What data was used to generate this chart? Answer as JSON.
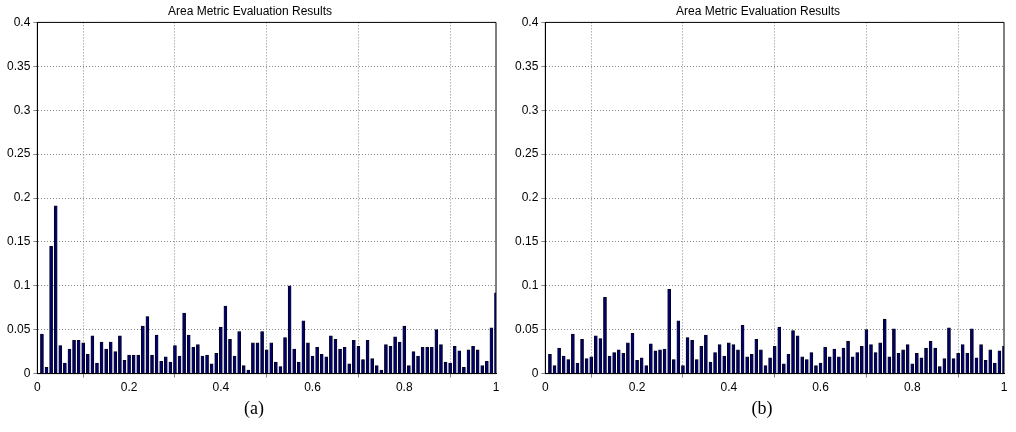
{
  "chart_data": [
    {
      "type": "bar",
      "title": "Area Metric Evaluation Results",
      "annotations": [
        "(a)"
      ],
      "color": "#000066",
      "grid": true,
      "xlim": [
        0,
        1
      ],
      "xticks": [
        0,
        0.2,
        0.4,
        0.6,
        0.8,
        1
      ],
      "ylim": [
        0,
        0.4
      ],
      "yticks": [
        0,
        0.05,
        0.1,
        0.15,
        0.2,
        0.25,
        0.3,
        0.35,
        0.4
      ],
      "x": [
        0.01,
        0.02,
        0.03,
        0.04,
        0.05,
        0.06,
        0.07,
        0.08,
        0.09,
        0.1,
        0.11,
        0.12,
        0.13,
        0.14,
        0.15,
        0.16,
        0.17,
        0.18,
        0.19,
        0.2,
        0.21,
        0.22,
        0.23,
        0.24,
        0.25,
        0.26,
        0.27,
        0.28,
        0.29,
        0.3,
        0.31,
        0.32,
        0.33,
        0.34,
        0.35,
        0.36,
        0.37,
        0.38,
        0.39,
        0.4,
        0.41,
        0.42,
        0.43,
        0.44,
        0.45,
        0.46,
        0.47,
        0.48,
        0.49,
        0.5,
        0.51,
        0.52,
        0.53,
        0.54,
        0.55,
        0.56,
        0.57,
        0.58,
        0.59,
        0.6,
        0.61,
        0.62,
        0.63,
        0.64,
        0.65,
        0.66,
        0.67,
        0.68,
        0.69,
        0.7,
        0.71,
        0.72,
        0.73,
        0.74,
        0.75,
        0.76,
        0.77,
        0.78,
        0.79,
        0.8,
        0.81,
        0.82,
        0.83,
        0.84,
        0.85,
        0.86,
        0.87,
        0.88,
        0.89,
        0.9,
        0.91,
        0.92,
        0.93,
        0.94,
        0.95,
        0.96,
        0.97,
        0.98,
        0.99,
        1
      ],
      "values": [
        0.045,
        0.007,
        0.145,
        0.191,
        0.032,
        0.012,
        0.028,
        0.038,
        0.038,
        0.035,
        0.022,
        0.043,
        0.012,
        0.036,
        0.028,
        0.036,
        0.025,
        0.043,
        0.015,
        0.021,
        0.021,
        0.021,
        0.054,
        0.065,
        0.021,
        0.044,
        0.014,
        0.019,
        0.013,
        0.032,
        0.02,
        0.069,
        0.044,
        0.03,
        0.033,
        0.02,
        0.021,
        0.011,
        0.023,
        0.053,
        0.077,
        0.039,
        0.02,
        0.048,
        0.009,
        0.004,
        0.035,
        0.035,
        0.048,
        0.027,
        0.035,
        0.013,
        0.008,
        0.041,
        0.1,
        0.028,
        0.013,
        0.06,
        0.035,
        0.02,
        0.03,
        0.022,
        0.019,
        0.043,
        0.039,
        0.028,
        0.03,
        0.011,
        0.038,
        0.031,
        0.016,
        0.038,
        0.017,
        0.009,
        0.004,
        0.033,
        0.031,
        0.042,
        0.036,
        0.054,
        0.009,
        0.025,
        0.02,
        0.03,
        0.03,
        0.03,
        0.05,
        0.033,
        0.013,
        0.012,
        0.031,
        0.026,
        0.007,
        0.027,
        0.031,
        0.027,
        0.009,
        0.014,
        0.052,
        0.092
      ]
    },
    {
      "type": "bar",
      "title": "Area Metric Evaluation Results",
      "annotations": [
        "(b)"
      ],
      "color": "#000066",
      "grid": true,
      "xlim": [
        0,
        1
      ],
      "xticks": [
        0,
        0.2,
        0.4,
        0.6,
        0.8,
        1
      ],
      "ylim": [
        0,
        0.4
      ],
      "yticks": [
        0,
        0.05,
        0.1,
        0.15,
        0.2,
        0.25,
        0.3,
        0.35,
        0.4
      ],
      "x": [
        0.01,
        0.02,
        0.03,
        0.04,
        0.05,
        0.06,
        0.07,
        0.08,
        0.09,
        0.1,
        0.11,
        0.12,
        0.13,
        0.14,
        0.15,
        0.16,
        0.17,
        0.18,
        0.19,
        0.2,
        0.21,
        0.22,
        0.23,
        0.24,
        0.25,
        0.26,
        0.27,
        0.28,
        0.29,
        0.3,
        0.31,
        0.32,
        0.33,
        0.34,
        0.35,
        0.36,
        0.37,
        0.38,
        0.39,
        0.4,
        0.41,
        0.42,
        0.43,
        0.44,
        0.45,
        0.46,
        0.47,
        0.48,
        0.49,
        0.5,
        0.51,
        0.52,
        0.53,
        0.54,
        0.55,
        0.56,
        0.57,
        0.58,
        0.59,
        0.6,
        0.61,
        0.62,
        0.63,
        0.64,
        0.65,
        0.66,
        0.67,
        0.68,
        0.69,
        0.7,
        0.71,
        0.72,
        0.73,
        0.74,
        0.75,
        0.76,
        0.77,
        0.78,
        0.79,
        0.8,
        0.81,
        0.82,
        0.83,
        0.84,
        0.85,
        0.86,
        0.87,
        0.88,
        0.89,
        0.9,
        0.91,
        0.92,
        0.93,
        0.94,
        0.95,
        0.96,
        0.97,
        0.98,
        0.99,
        1
      ],
      "values": [
        0.022,
        0.009,
        0.029,
        0.02,
        0.016,
        0.045,
        0.012,
        0.039,
        0.017,
        0.019,
        0.043,
        0.04,
        0.087,
        0.02,
        0.024,
        0.027,
        0.023,
        0.035,
        0.046,
        0.015,
        0.018,
        0.009,
        0.034,
        0.026,
        0.027,
        0.028,
        0.096,
        0.016,
        0.06,
        0.009,
        0.041,
        0.038,
        0.016,
        0.031,
        0.044,
        0.013,
        0.024,
        0.033,
        0.02,
        0.035,
        0.033,
        0.027,
        0.055,
        0.019,
        0.022,
        0.039,
        0.027,
        0.009,
        0.018,
        0.031,
        0.053,
        0.011,
        0.022,
        0.049,
        0.043,
        0.019,
        0.016,
        0.024,
        0.009,
        0.012,
        0.03,
        0.019,
        0.028,
        0.019,
        0.029,
        0.037,
        0.019,
        0.024,
        0.031,
        0.05,
        0.033,
        0.024,
        0.035,
        0.062,
        0.019,
        0.051,
        0.023,
        0.027,
        0.033,
        0.011,
        0.023,
        0.018,
        0.029,
        0.037,
        0.029,
        0.008,
        0.017,
        0.052,
        0.017,
        0.023,
        0.033,
        0.023,
        0.051,
        0.018,
        0.033,
        0.015,
        0.027,
        0.012,
        0.026,
        0.031
      ]
    }
  ]
}
